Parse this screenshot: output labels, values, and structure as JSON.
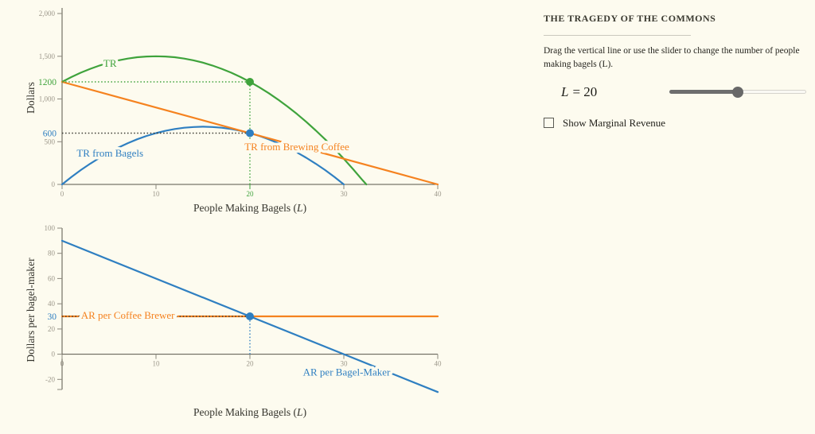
{
  "colors": {
    "green": "#3FA33C",
    "blue": "#2F7FC1",
    "orange": "#F5821F",
    "dark": "#3A3A32",
    "background": "#FDFBEF",
    "axis_line": "#57544A",
    "tick_mark": "#8B887D",
    "tick_text": "#9C978A",
    "title_text": "#35342D"
  },
  "panel": {
    "title": "THE TRAGEDY OF THE COMMONS",
    "instructions": "Drag the vertical line or use the slider to change the number of people making bagels (L).",
    "slider": {
      "var": "L",
      "equals_value": "= 20",
      "value": 20,
      "min": 0,
      "max": 40
    },
    "checkbox": {
      "label": "Show Marginal Revenue",
      "checked": false
    }
  },
  "chart_data": [
    {
      "type": "line",
      "xlabel": "People Making Bagels (L)",
      "ylabel": "Dollars",
      "xlim": [
        0,
        40
      ],
      "ylim": [
        0,
        2000
      ],
      "xticks": [
        0,
        10,
        20,
        30,
        40
      ],
      "highlight_xtick": 20,
      "yticks": [
        0,
        500,
        1000,
        1500,
        2000
      ],
      "ytick_labels": [
        "0",
        "500",
        "1,000",
        "1,500",
        "2,000"
      ],
      "extra_ylabels": [
        {
          "value": 1200,
          "label": "1200",
          "color": "green"
        },
        {
          "value": 600,
          "label": "600",
          "color": "blue"
        }
      ],
      "series": [
        {
          "name": "TR",
          "color": "green",
          "label_at": [
            5.1,
            1414
          ],
          "points": [
            [
              0,
              1200
            ],
            [
              1,
              1257
            ],
            [
              2,
              1308
            ],
            [
              3,
              1353
            ],
            [
              4,
              1392
            ],
            [
              5,
              1425
            ],
            [
              6,
              1452
            ],
            [
              7,
              1473
            ],
            [
              8,
              1488
            ],
            [
              9,
              1497
            ],
            [
              10,
              1500
            ],
            [
              11,
              1497
            ],
            [
              12,
              1488
            ],
            [
              13,
              1473
            ],
            [
              14,
              1452
            ],
            [
              15,
              1425
            ],
            [
              16,
              1392
            ],
            [
              17,
              1353
            ],
            [
              18,
              1308
            ],
            [
              19,
              1257
            ],
            [
              20,
              1200
            ],
            [
              21,
              1137
            ],
            [
              22,
              1068
            ],
            [
              23,
              993
            ],
            [
              24,
              912
            ],
            [
              25,
              825
            ],
            [
              26,
              732
            ],
            [
              27,
              633
            ],
            [
              28,
              528
            ],
            [
              29,
              417
            ],
            [
              30,
              300
            ],
            [
              31,
              177
            ],
            [
              32,
              48
            ],
            [
              32.4,
              0
            ]
          ]
        },
        {
          "name": "TR from Bagels",
          "color": "blue",
          "label_at": [
            5.1,
            363
          ],
          "points": [
            [
              0,
              0
            ],
            [
              1,
              87
            ],
            [
              2,
              168
            ],
            [
              3,
              243
            ],
            [
              4,
              312
            ],
            [
              5,
              375
            ],
            [
              6,
              432
            ],
            [
              7,
              483
            ],
            [
              8,
              528
            ],
            [
              9,
              567
            ],
            [
              10,
              600
            ],
            [
              11,
              627
            ],
            [
              12,
              648
            ],
            [
              13,
              663
            ],
            [
              14,
              672
            ],
            [
              15,
              675
            ],
            [
              16,
              672
            ],
            [
              17,
              663
            ],
            [
              18,
              648
            ],
            [
              19,
              627
            ],
            [
              20,
              600
            ],
            [
              21,
              567
            ],
            [
              22,
              528
            ],
            [
              23,
              483
            ],
            [
              24,
              432
            ],
            [
              25,
              375
            ],
            [
              26,
              312
            ],
            [
              27,
              243
            ],
            [
              28,
              168
            ],
            [
              29,
              87
            ],
            [
              30,
              0
            ]
          ]
        },
        {
          "name": "TR from Brewing Coffee",
          "color": "orange",
          "label_at": [
            25,
            437
          ],
          "points": [
            [
              0,
              1200
            ],
            [
              40,
              0
            ]
          ]
        }
      ],
      "markers": [
        {
          "x": 20,
          "y": 1200,
          "color": "green"
        },
        {
          "x": 20,
          "y": 600,
          "color": "blue"
        }
      ],
      "guides": [
        {
          "type": "h",
          "y": 1200,
          "from": 0,
          "to": 20,
          "color": "green",
          "draggable": false
        },
        {
          "type": "h",
          "y": 600,
          "from": 0,
          "to": 20,
          "color": "dark",
          "draggable": false
        },
        {
          "type": "v",
          "x": 20,
          "from": 0,
          "to": 1200,
          "color": "green",
          "draggable": true
        }
      ]
    },
    {
      "type": "line",
      "xlabel": "People Making Bagels (L)",
      "ylabel": "Dollars per bagel-maker",
      "xlim": [
        0,
        40
      ],
      "ylim": [
        -20,
        100
      ],
      "xticks": [
        0,
        10,
        20,
        30,
        40
      ],
      "highlight_xtick": null,
      "yticks": [
        -20,
        0,
        20,
        40,
        60,
        80,
        100
      ],
      "ytick_labels": [
        "-20",
        "0",
        "20",
        "40",
        "60",
        "80",
        "100"
      ],
      "extra_ylabels": [
        {
          "value": 30,
          "label": "30",
          "color": "blue"
        }
      ],
      "series": [
        {
          "name": "AR per Coffee Brewer",
          "color": "orange",
          "label_at": [
            7.0,
            30.6
          ],
          "points": [
            [
              0,
              30
            ],
            [
              40,
              30
            ]
          ]
        },
        {
          "name": "AR per Bagel-Maker",
          "color": "blue",
          "label_at": [
            30.3,
            -14.3
          ],
          "points": [
            [
              0,
              90
            ],
            [
              40,
              -30
            ]
          ]
        }
      ],
      "markers": [
        {
          "x": 20,
          "y": 30,
          "color": "blue"
        }
      ],
      "guides": [
        {
          "type": "h",
          "y": 30,
          "from": 0,
          "to": 20,
          "color": "dark",
          "draggable": false
        },
        {
          "type": "v",
          "x": 20,
          "from": 0,
          "to": 30,
          "color": "blue",
          "draggable": true
        }
      ]
    }
  ]
}
